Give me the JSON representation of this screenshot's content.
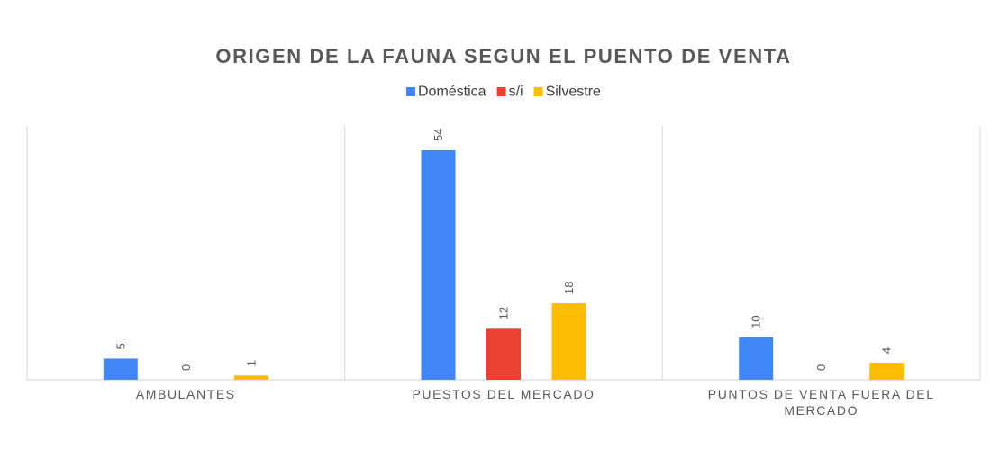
{
  "chart_data": {
    "type": "bar",
    "title": "ORIGEN DE LA FAUNA SEGUN EL PUENTO DE VENTA",
    "categories": [
      [
        "AMBULANTES"
      ],
      [
        "PUESTOS DEL MERCADO"
      ],
      [
        "PUNTOS DE VENTA FUERA DEL",
        "MERCADO"
      ]
    ],
    "series": [
      {
        "name": "Doméstica",
        "color": "#4285F4",
        "values": [
          5,
          54,
          10
        ]
      },
      {
        "name": "s/i",
        "color": "#EA4335",
        "values": [
          0,
          12,
          0
        ]
      },
      {
        "name": "Silvestre",
        "color": "#FBBC04",
        "values": [
          1,
          18,
          4
        ]
      }
    ],
    "xlabel": "",
    "ylabel": "",
    "ylim": [
      0,
      54
    ],
    "legend_position": "top",
    "data_labels": true,
    "gridlines": "vertical-category-separators"
  }
}
